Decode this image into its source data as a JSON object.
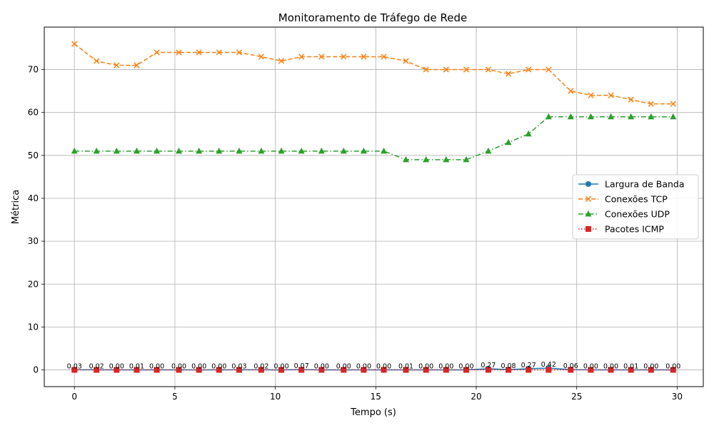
{
  "chart_data": {
    "type": "line",
    "title": "Monitoramento de Tráfego de Rede",
    "xlabel": "Tempo (s)",
    "ylabel": "Métrica",
    "xlim": [
      -1.5,
      31.3
    ],
    "ylim": [
      -3.9,
      79.9
    ],
    "xticks": [
      0,
      5,
      10,
      15,
      20,
      25,
      30
    ],
    "yticks": [
      0,
      10,
      20,
      30,
      40,
      50,
      60,
      70
    ],
    "grid": true,
    "legend_position": "center-right",
    "x": [
      0.0,
      1.1,
      2.1,
      3.1,
      4.1,
      5.2,
      6.2,
      7.2,
      8.2,
      9.3,
      10.3,
      11.3,
      12.3,
      13.4,
      14.4,
      15.4,
      16.5,
      17.5,
      18.5,
      19.5,
      20.6,
      21.6,
      22.6,
      23.6,
      24.7,
      25.7,
      26.7,
      27.7,
      28.7,
      29.8
    ],
    "series": [
      {
        "name": "Largura de Banda",
        "color": "#1f77b4",
        "marker": "circle",
        "linestyle": "solid",
        "values": [
          0.03,
          0.02,
          0.0,
          0.01,
          0.0,
          0.0,
          0.0,
          0.0,
          0.03,
          0.02,
          0.0,
          0.07,
          0.0,
          0.0,
          0.0,
          0.0,
          0.01,
          0.0,
          0.0,
          0.0,
          0.27,
          0.08,
          0.27,
          0.42,
          0.06,
          0.0,
          0.0,
          0.01,
          0.0,
          0.0
        ],
        "labels": [
          "0.03",
          "0.02",
          "0.00",
          "0.01",
          "0.00",
          "0.00",
          "0.00",
          "0.00",
          "0.03",
          "0.02",
          "0.00",
          "0.07",
          "0.00",
          "0.00",
          "0.00",
          "0.00",
          "0.01",
          "0.00",
          "0.00",
          "0.00",
          "0.27",
          "0.08",
          "0.27",
          "0.42",
          "0.06",
          "0.00",
          "0.00",
          "0.01",
          "0.00",
          "0.00"
        ]
      },
      {
        "name": "Conexões TCP",
        "color": "#ff7f0e",
        "marker": "x",
        "linestyle": "dashed",
        "values": [
          76,
          72,
          71,
          71,
          74,
          74,
          74,
          74,
          74,
          73,
          72,
          73,
          73,
          73,
          73,
          73,
          72,
          70,
          70,
          70,
          70,
          69,
          70,
          70,
          65,
          64,
          64,
          63,
          62,
          62
        ]
      },
      {
        "name": "Conexões UDP",
        "color": "#2ca02c",
        "marker": "triangle",
        "linestyle": "dashdot",
        "values": [
          51,
          51,
          51,
          51,
          51,
          51,
          51,
          51,
          51,
          51,
          51,
          51,
          51,
          51,
          51,
          51,
          49,
          49,
          49,
          49,
          51,
          53,
          55,
          59,
          59,
          59,
          59,
          59,
          59,
          59
        ]
      },
      {
        "name": "Pacotes ICMP",
        "color": "#d62728",
        "marker": "square",
        "linestyle": "dotted",
        "values": [
          0,
          0,
          0,
          0,
          0,
          0,
          0,
          0,
          0,
          0,
          0,
          0,
          0,
          0,
          0,
          0,
          0,
          0,
          0,
          0,
          0,
          0,
          0,
          0,
          0,
          0,
          0,
          0,
          0,
          0
        ]
      }
    ]
  }
}
